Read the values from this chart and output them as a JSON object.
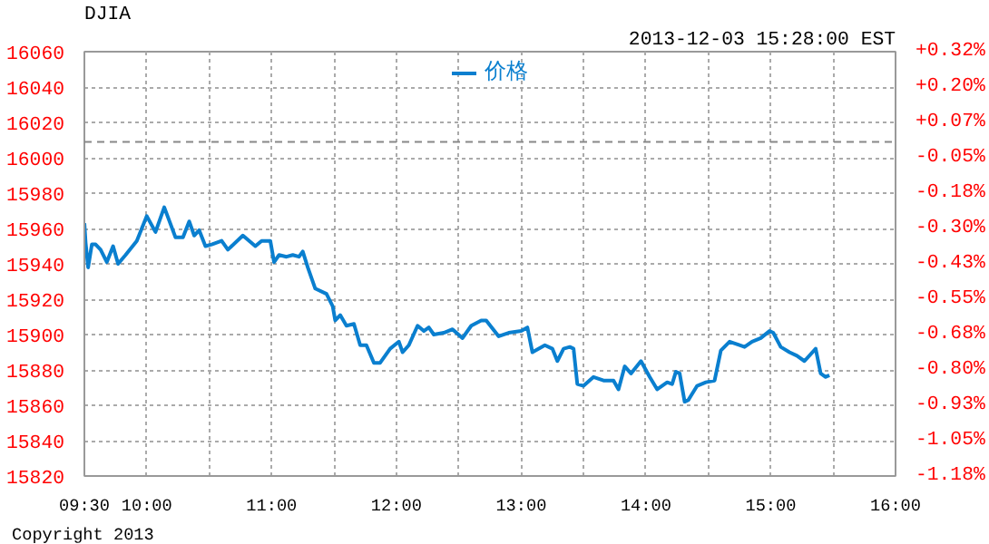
{
  "chart_data": {
    "type": "line",
    "title": "DJIA",
    "subtitle": "2013-12-03 15:28:00 EST",
    "annotations": [
      "Copyright 2013"
    ],
    "x": [
      9.5,
      9.51,
      9.53,
      9.56,
      9.59,
      9.63,
      9.68,
      9.73,
      9.77,
      9.83,
      9.92,
      10.0,
      10.07,
      10.14,
      10.23,
      10.29,
      10.34,
      10.38,
      10.42,
      10.47,
      10.52,
      10.6,
      10.65,
      10.77,
      10.87,
      10.92,
      10.99,
      11.02,
      11.06,
      11.12,
      11.17,
      11.22,
      11.25,
      11.29,
      11.35,
      11.44,
      11.49,
      11.51,
      11.55,
      11.6,
      11.66,
      11.71,
      11.76,
      11.82,
      11.87,
      11.95,
      12.02,
      12.05,
      12.1,
      12.17,
      12.22,
      12.26,
      12.3,
      12.38,
      12.45,
      12.53,
      12.6,
      12.68,
      12.72,
      12.82,
      12.9,
      13.0,
      13.05,
      13.09,
      13.19,
      13.25,
      13.29,
      13.34,
      13.39,
      13.42,
      13.45,
      13.5,
      13.58,
      13.66,
      13.74,
      13.78,
      13.83,
      13.88,
      13.96,
      14.03,
      14.09,
      14.17,
      14.21,
      14.24,
      14.27,
      14.31,
      14.34,
      14.41,
      14.48,
      14.55,
      14.6,
      14.67,
      14.75,
      14.79,
      14.85,
      14.92,
      14.99,
      15.02,
      15.08,
      15.15,
      15.21,
      15.27,
      15.36,
      15.4,
      15.44,
      15.47
    ],
    "series": [
      {
        "name": "价格",
        "color": "#0a7fcf",
        "values": [
          15963,
          15952,
          15938,
          15951,
          15951,
          15948,
          15941,
          15950,
          15940,
          15945,
          15953,
          15967,
          15958,
          15972,
          15955,
          15955,
          15964,
          15956,
          15959,
          15950,
          15951,
          15953,
          15948,
          15956,
          15950,
          15953,
          15953,
          15941,
          15945,
          15944,
          15945,
          15944,
          15947,
          15938,
          15926,
          15923,
          15916,
          15908,
          15911,
          15905,
          15906,
          15894,
          15894,
          15884,
          15884,
          15892,
          15896,
          15890,
          15894,
          15905,
          15902,
          15904,
          15900,
          15901,
          15903,
          15898,
          15905,
          15908,
          15908,
          15899,
          15901,
          15902,
          15904,
          15890,
          15894,
          15892,
          15885,
          15892,
          15893,
          15892,
          15872,
          15871,
          15876,
          15874,
          15874,
          15869,
          15882,
          15878,
          15885,
          15876,
          15869,
          15873,
          15872,
          15879,
          15878,
          15862,
          15863,
          15871,
          15873,
          15874,
          15891,
          15896,
          15894,
          15893,
          15896,
          15898,
          15902,
          15901,
          15893,
          15890,
          15888,
          15885,
          15892,
          15878,
          15876,
          15877
        ]
      }
    ],
    "xlim": [
      9.5,
      16
    ],
    "xticks": [
      {
        "value": 9.5,
        "label": "09:30"
      },
      {
        "value": 10,
        "label": "10:00"
      },
      {
        "value": 10.5,
        "label": null
      },
      {
        "value": 11,
        "label": "11:00"
      },
      {
        "value": 11.5,
        "label": null
      },
      {
        "value": 12,
        "label": "12:00"
      },
      {
        "value": 12.5,
        "label": null
      },
      {
        "value": 13,
        "label": "13:00"
      },
      {
        "value": 13.5,
        "label": null
      },
      {
        "value": 14,
        "label": "14:00"
      },
      {
        "value": 14.5,
        "label": null
      },
      {
        "value": 15,
        "label": "15:00"
      },
      {
        "value": 15.5,
        "label": null
      },
      {
        "value": 16,
        "label": "16:00"
      }
    ],
    "ylim": [
      15820,
      16060
    ],
    "yticks": [
      15820,
      15840,
      15860,
      15880,
      15900,
      15920,
      15940,
      15960,
      15980,
      16000,
      16020,
      16040,
      16060
    ],
    "y2lim": [
      -1.18,
      0.32
    ],
    "y2ticks": [
      {
        "value": -1.18,
        "label": "-1.18%"
      },
      {
        "value": -1.055,
        "label": "-1.05%"
      },
      {
        "value": -0.93,
        "label": "-0.93%"
      },
      {
        "value": -0.805,
        "label": "-0.80%"
      },
      {
        "value": -0.68,
        "label": "-0.68%"
      },
      {
        "value": -0.555,
        "label": "-0.55%"
      },
      {
        "value": -0.43,
        "label": "-0.43%"
      },
      {
        "value": -0.305,
        "label": "-0.30%"
      },
      {
        "value": -0.18,
        "label": "-0.18%"
      },
      {
        "value": -0.055,
        "label": "-0.05%"
      },
      {
        "value": 0.07,
        "label": "+0.07%"
      },
      {
        "value": 0.195,
        "label": "+0.20%"
      },
      {
        "value": 0.32,
        "label": "+0.32%"
      }
    ],
    "ref_lines": [
      {
        "axis": "y",
        "value": 16009,
        "color": "#888888",
        "line_style": "dashed"
      }
    ],
    "grid": true,
    "legend": "top",
    "line_style": "solid",
    "marker": "none"
  }
}
